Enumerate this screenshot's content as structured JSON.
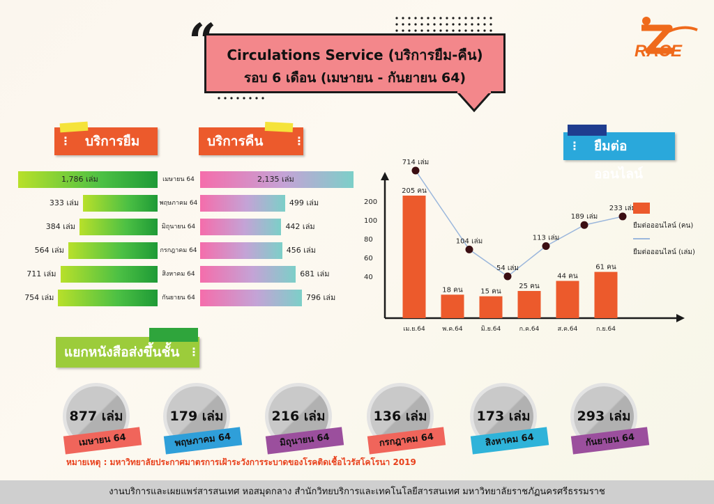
{
  "title": {
    "line1": "Circulations Service (บริการยืม-คืน)",
    "line2": "รอบ 6 เดือน (เมษายน - กันยายน 64)",
    "quote": "“"
  },
  "logo": {
    "text": "RACE"
  },
  "sections": {
    "borrow": "บริการยืม",
    "return": "บริการคืน",
    "online": "ยืมต่อออนไลน์",
    "levels": "แยกหนังสือส่งขึ้นชั้น"
  },
  "months": [
    "เมษายน 64",
    "พฤษภาคม 64",
    "มิถุนายน 64",
    "กรกฎาคม 64",
    "สิงหาคม 64",
    "กันยายน 64"
  ],
  "chart_data": [
    {
      "type": "bar",
      "categories": [
        "เมษายน 64",
        "พฤษภาคม 64",
        "มิถุนายน 64",
        "กรกฎาคม 64",
        "สิงหาคม 64",
        "กันยายน 64"
      ],
      "values": [
        1786,
        333,
        384,
        564,
        711,
        754
      ],
      "labels": [
        "1,786 เล่ม",
        "333 เล่ม",
        "384 เล่ม",
        "564 เล่ม",
        "711 เล่ม",
        "754 เล่ม"
      ],
      "title": "บริการยืม",
      "orientation": "horizontal"
    },
    {
      "type": "bar",
      "categories": [
        "เมษายน 64",
        "พฤษภาคม 64",
        "มิถุนายน 64",
        "กรกฎาคม 64",
        "สิงหาคม 64",
        "กันยายน 64"
      ],
      "values": [
        2135,
        499,
        442,
        456,
        681,
        796
      ],
      "labels": [
        "2,135 เล่ม",
        "499 เล่ม",
        "442 เล่ม",
        "456 เล่ม",
        "681 เล่ม",
        "796 เล่ม"
      ],
      "title": "บริการคืน",
      "orientation": "horizontal"
    },
    {
      "type": "bar",
      "title": "ยืมต่อออนไลน์",
      "categories": [
        "เม.ย.64",
        "พ.ค.64",
        "มิ.ย.64",
        "ก.ค.64",
        "ส.ค.64",
        "ก.ย.64"
      ],
      "y_ticks": [
        "200",
        "100",
        "80",
        "60",
        "40"
      ],
      "series": [
        {
          "name": "ยืมต่อออนไลน์ (คน)",
          "type": "bar",
          "values": [
            205,
            18,
            15,
            25,
            44,
            61
          ],
          "labels": [
            "205 คน",
            "18 คน",
            "15 คน",
            "25 คน",
            "44 คน",
            "61 คน"
          ],
          "color": "#ec5a2c"
        },
        {
          "name": "ยืมต่อออนไลน์ (เล่ม)",
          "type": "line",
          "values": [
            714,
            104,
            54,
            113,
            189,
            233
          ],
          "labels": [
            "714 เล่ม",
            "104 เล่ม",
            "54 เล่ม",
            "113 เล่ม",
            "189 เล่ม",
            "233 เล่ม"
          ],
          "color": "#9bb7dc"
        }
      ],
      "legend": "right"
    },
    {
      "type": "table",
      "title": "แยกหนังสือส่งขึ้นชั้น",
      "categories": [
        "เมษายน 64",
        "พฤษภาคม 64",
        "มิถุนายน 64",
        "กรกฎาคม 64",
        "สิงหาคม 64",
        "กันยายน 64"
      ],
      "values": [
        877,
        179,
        216,
        136,
        173,
        293
      ],
      "labels": [
        "877 เล่ม",
        "179 เล่ม",
        "216 เล่ม",
        "136 เล่ม",
        "173 เล่ม",
        "293 เล่ม"
      ]
    }
  ],
  "colors": {
    "orange": "#ec5a2c",
    "ribbon": [
      "#f0655b",
      "#2f9fd9",
      "#9b4f9d",
      "#f0655b",
      "#2fb3d9",
      "#9b4f9d"
    ]
  },
  "note": "หมายเหตุ : มหาวิทยาลัยประกาศมาตรการเฝ้าระวังการระบาดของโรคติดเชื้อไวรัสโคโรนา 2019",
  "footer": "งานบริการและเผยแพร่สารสนเทศ หอสมุดกลาง สำนักวิทยบริการและเทคโนโลยีสารสนเทศ มหาวิทยาลัยราชภัฏนครศรีธรรมราช"
}
